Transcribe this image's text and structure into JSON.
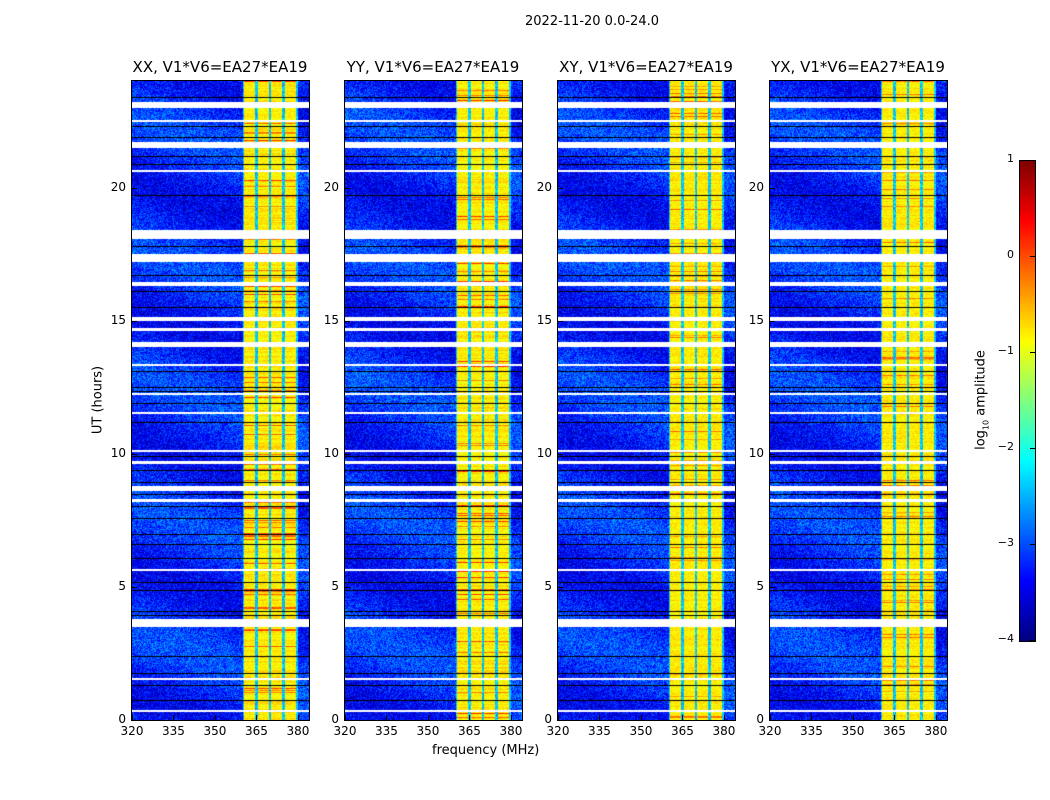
{
  "title": "2022-11-20 0.0-24.0",
  "chart_data": {
    "type": "heatmap",
    "title": "2022-11-20 0.0-24.0",
    "xlabel": "frequency (MHz)",
    "ylabel": "UT (hours)",
    "xlim": [
      320,
      384
    ],
    "ylim": [
      0,
      24
    ],
    "xticks": [
      "320",
      "335",
      "350",
      "365",
      "380"
    ],
    "xtick_values": [
      320,
      335,
      350,
      365,
      380
    ],
    "yticks": [
      "0",
      "5",
      "10",
      "15",
      "20"
    ],
    "ytick_values": [
      0,
      5,
      10,
      15,
      20
    ],
    "panels": [
      {
        "title": "XX, V1*V6=EA27*EA19"
      },
      {
        "title": "YY, V1*V6=EA27*EA19"
      },
      {
        "title": "XY, V1*V6=EA27*EA19"
      },
      {
        "title": "YX, V1*V6=EA27*EA19"
      }
    ],
    "colorbar": {
      "label": "log",
      "label_sub": "10",
      "label_rest": " amplitude",
      "range": [
        -4,
        1
      ],
      "ticks": [
        "1",
        "0",
        "−1",
        "−2",
        "−3",
        "−4"
      ],
      "tick_values": [
        1,
        0,
        -1,
        -2,
        -3,
        -4
      ],
      "colormap": "jet"
    },
    "background_log_amplitude": -3.2,
    "bright_bands_mhz": [
      [
        360.5,
        364.6
      ],
      [
        365.4,
        369.6
      ],
      [
        370.4,
        374.3
      ],
      [
        375.2,
        379.3
      ]
    ],
    "band_log_amplitude": -0.8,
    "flagged_white_hours": [
      [
        23.0,
        23.2
      ],
      [
        22.45,
        22.55
      ],
      [
        21.5,
        21.7
      ],
      [
        20.6,
        20.66
      ],
      [
        18.05,
        18.4
      ],
      [
        17.2,
        17.5
      ],
      [
        16.3,
        16.45
      ],
      [
        15.0,
        15.12
      ],
      [
        14.6,
        14.72
      ],
      [
        14.0,
        14.2
      ],
      [
        13.3,
        13.36
      ],
      [
        12.2,
        12.28
      ],
      [
        11.5,
        11.58
      ],
      [
        10.08,
        10.14
      ],
      [
        9.6,
        9.72
      ],
      [
        8.6,
        8.8
      ],
      [
        8.2,
        8.3
      ],
      [
        5.6,
        5.68
      ],
      [
        3.5,
        3.78
      ],
      [
        1.5,
        1.58
      ],
      [
        0.3,
        0.36
      ]
    ],
    "flagged_black_hours": [
      23.4,
      22.3,
      21.9,
      21.2,
      20.9,
      19.7,
      17.8,
      16.7,
      16.1,
      15.5,
      13.1,
      12.5,
      12.35,
      11.9,
      11.2,
      9.9,
      9.4,
      8.95,
      8.5,
      8.05,
      7.6,
      7.0,
      6.6,
      6.1,
      5.2,
      4.9,
      4.1,
      3.95,
      2.4,
      1.75,
      1.3,
      0.75
    ]
  }
}
